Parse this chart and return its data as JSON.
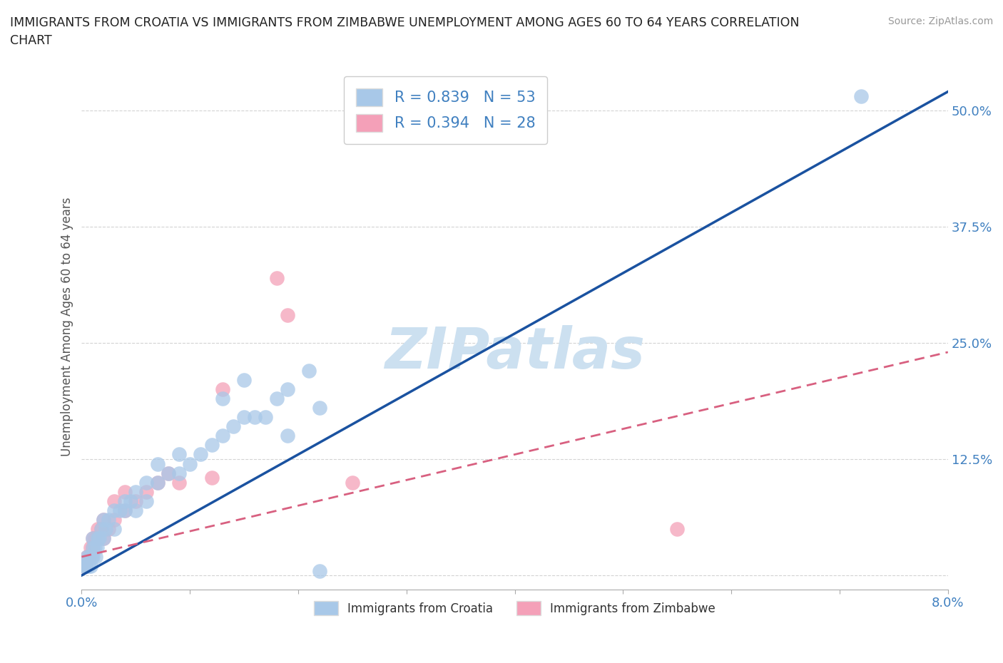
{
  "title": "IMMIGRANTS FROM CROATIA VS IMMIGRANTS FROM ZIMBABWE UNEMPLOYMENT AMONG AGES 60 TO 64 YEARS CORRELATION\nCHART",
  "source": "Source: ZipAtlas.com",
  "ylabel": "Unemployment Among Ages 60 to 64 years",
  "xlim": [
    0.0,
    0.08
  ],
  "ylim": [
    -0.015,
    0.55
  ],
  "xtick_vals": [
    0.0,
    0.01,
    0.02,
    0.03,
    0.04,
    0.05,
    0.06,
    0.07,
    0.08
  ],
  "xticklabels": [
    "0.0%",
    "",
    "",
    "",
    "",
    "",
    "",
    "",
    "8.0%"
  ],
  "ytick_vals": [
    0.0,
    0.125,
    0.25,
    0.375,
    0.5
  ],
  "yticklabels": [
    "",
    "12.5%",
    "25.0%",
    "37.5%",
    "50.0%"
  ],
  "grid_color": "#c8c8c8",
  "background_color": "#ffffff",
  "croatia_color": "#a8c8e8",
  "zimbabwe_color": "#f4a0b8",
  "croatia_line_color": "#1a52a0",
  "zimbabwe_line_color": "#d86080",
  "tick_label_color": "#4080c0",
  "title_color": "#222222",
  "legend_R_croatia": "R = 0.839",
  "legend_N_croatia": "N = 53",
  "legend_R_zimbabwe": "R = 0.394",
  "legend_N_zimbabwe": "N = 28",
  "watermark": "ZIPatlas",
  "watermark_color": "#cce0f0",
  "croatia_line_x0": 0.0,
  "croatia_line_y0": 0.0,
  "croatia_line_x1": 0.08,
  "croatia_line_y1": 0.52,
  "zimbabwe_line_x0": 0.0,
  "zimbabwe_line_y0": 0.02,
  "zimbabwe_line_x1": 0.08,
  "zimbabwe_line_y1": 0.24,
  "croatia_scatter_x": [
    0.0002,
    0.0003,
    0.0004,
    0.0005,
    0.0006,
    0.0007,
    0.0008,
    0.0009,
    0.001,
    0.001,
    0.001,
    0.0012,
    0.0013,
    0.0014,
    0.0015,
    0.0016,
    0.0018,
    0.002,
    0.002,
    0.0022,
    0.0025,
    0.003,
    0.003,
    0.0035,
    0.004,
    0.004,
    0.0045,
    0.005,
    0.005,
    0.006,
    0.006,
    0.007,
    0.007,
    0.008,
    0.009,
    0.009,
    0.01,
    0.011,
    0.012,
    0.013,
    0.014,
    0.015,
    0.016,
    0.018,
    0.019,
    0.021,
    0.022,
    0.015,
    0.013,
    0.017,
    0.019,
    0.022,
    0.072
  ],
  "croatia_scatter_y": [
    0.01,
    0.01,
    0.01,
    0.02,
    0.01,
    0.02,
    0.01,
    0.02,
    0.02,
    0.03,
    0.04,
    0.03,
    0.02,
    0.03,
    0.04,
    0.04,
    0.05,
    0.04,
    0.06,
    0.05,
    0.06,
    0.05,
    0.07,
    0.07,
    0.07,
    0.08,
    0.08,
    0.07,
    0.09,
    0.08,
    0.1,
    0.1,
    0.12,
    0.11,
    0.11,
    0.13,
    0.12,
    0.13,
    0.14,
    0.15,
    0.16,
    0.17,
    0.17,
    0.19,
    0.2,
    0.22,
    0.005,
    0.21,
    0.19,
    0.17,
    0.15,
    0.18,
    0.515
  ],
  "zimbabwe_scatter_x": [
    0.0002,
    0.0004,
    0.0005,
    0.0007,
    0.0008,
    0.001,
    0.001,
    0.0012,
    0.0015,
    0.0018,
    0.002,
    0.002,
    0.0025,
    0.003,
    0.003,
    0.004,
    0.004,
    0.005,
    0.006,
    0.007,
    0.008,
    0.009,
    0.012,
    0.013,
    0.018,
    0.019,
    0.055,
    0.025
  ],
  "zimbabwe_scatter_y": [
    0.01,
    0.01,
    0.02,
    0.02,
    0.03,
    0.03,
    0.04,
    0.04,
    0.05,
    0.05,
    0.04,
    0.06,
    0.05,
    0.06,
    0.08,
    0.07,
    0.09,
    0.08,
    0.09,
    0.1,
    0.11,
    0.1,
    0.105,
    0.2,
    0.32,
    0.28,
    0.05,
    0.1
  ]
}
